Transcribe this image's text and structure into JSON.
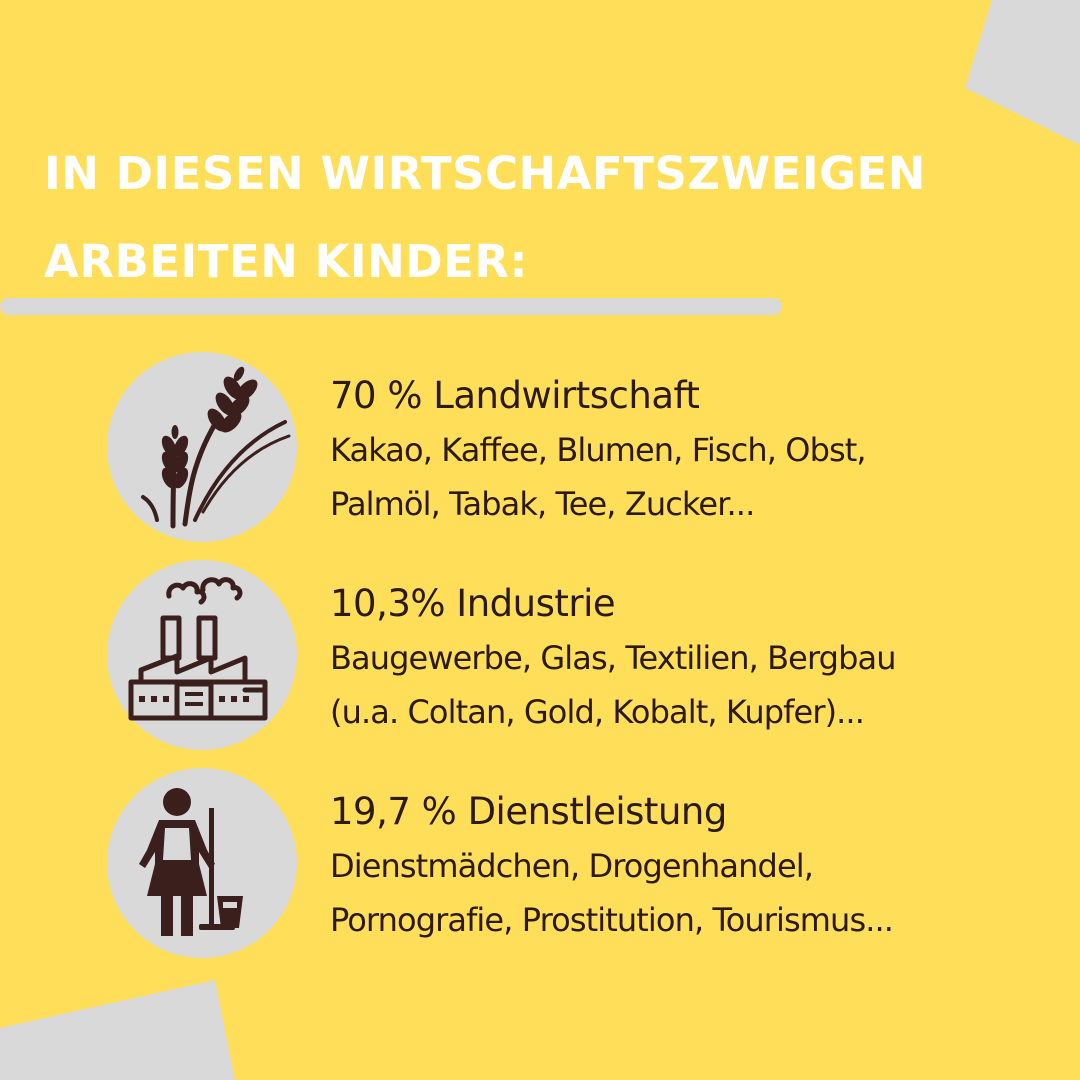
{
  "title": {
    "line1": "IN DIESEN WIRTSCHAFTSZWEIGEN",
    "line2": "ARBEITEN KINDER:"
  },
  "colors": {
    "background": "#FFDE59",
    "accent_gray": "#D9D9D9",
    "icon": "#3A1F1D",
    "title_text": "#FFFFFF"
  },
  "sectors": [
    {
      "icon": "wheat-icon",
      "heading": "70 % Landwirtschaft",
      "line1": "Kakao, Kaffee, Blumen, Fisch, Obst,",
      "line2": "Palmöl, Tabak, Tee, Zucker..."
    },
    {
      "icon": "factory-icon",
      "heading": "10,3% Industrie",
      "line1": "Baugewerbe, Glas, Textilien, Bergbau",
      "line2": "(u.a. Coltan, Gold, Kobalt, Kupfer)..."
    },
    {
      "icon": "maid-icon",
      "heading": "19,7 % Dienstleistung",
      "line1": "Dienstmädchen, Drogenhandel,",
      "line2": "Pornografie, Prostitution, Tourismus..."
    }
  ]
}
